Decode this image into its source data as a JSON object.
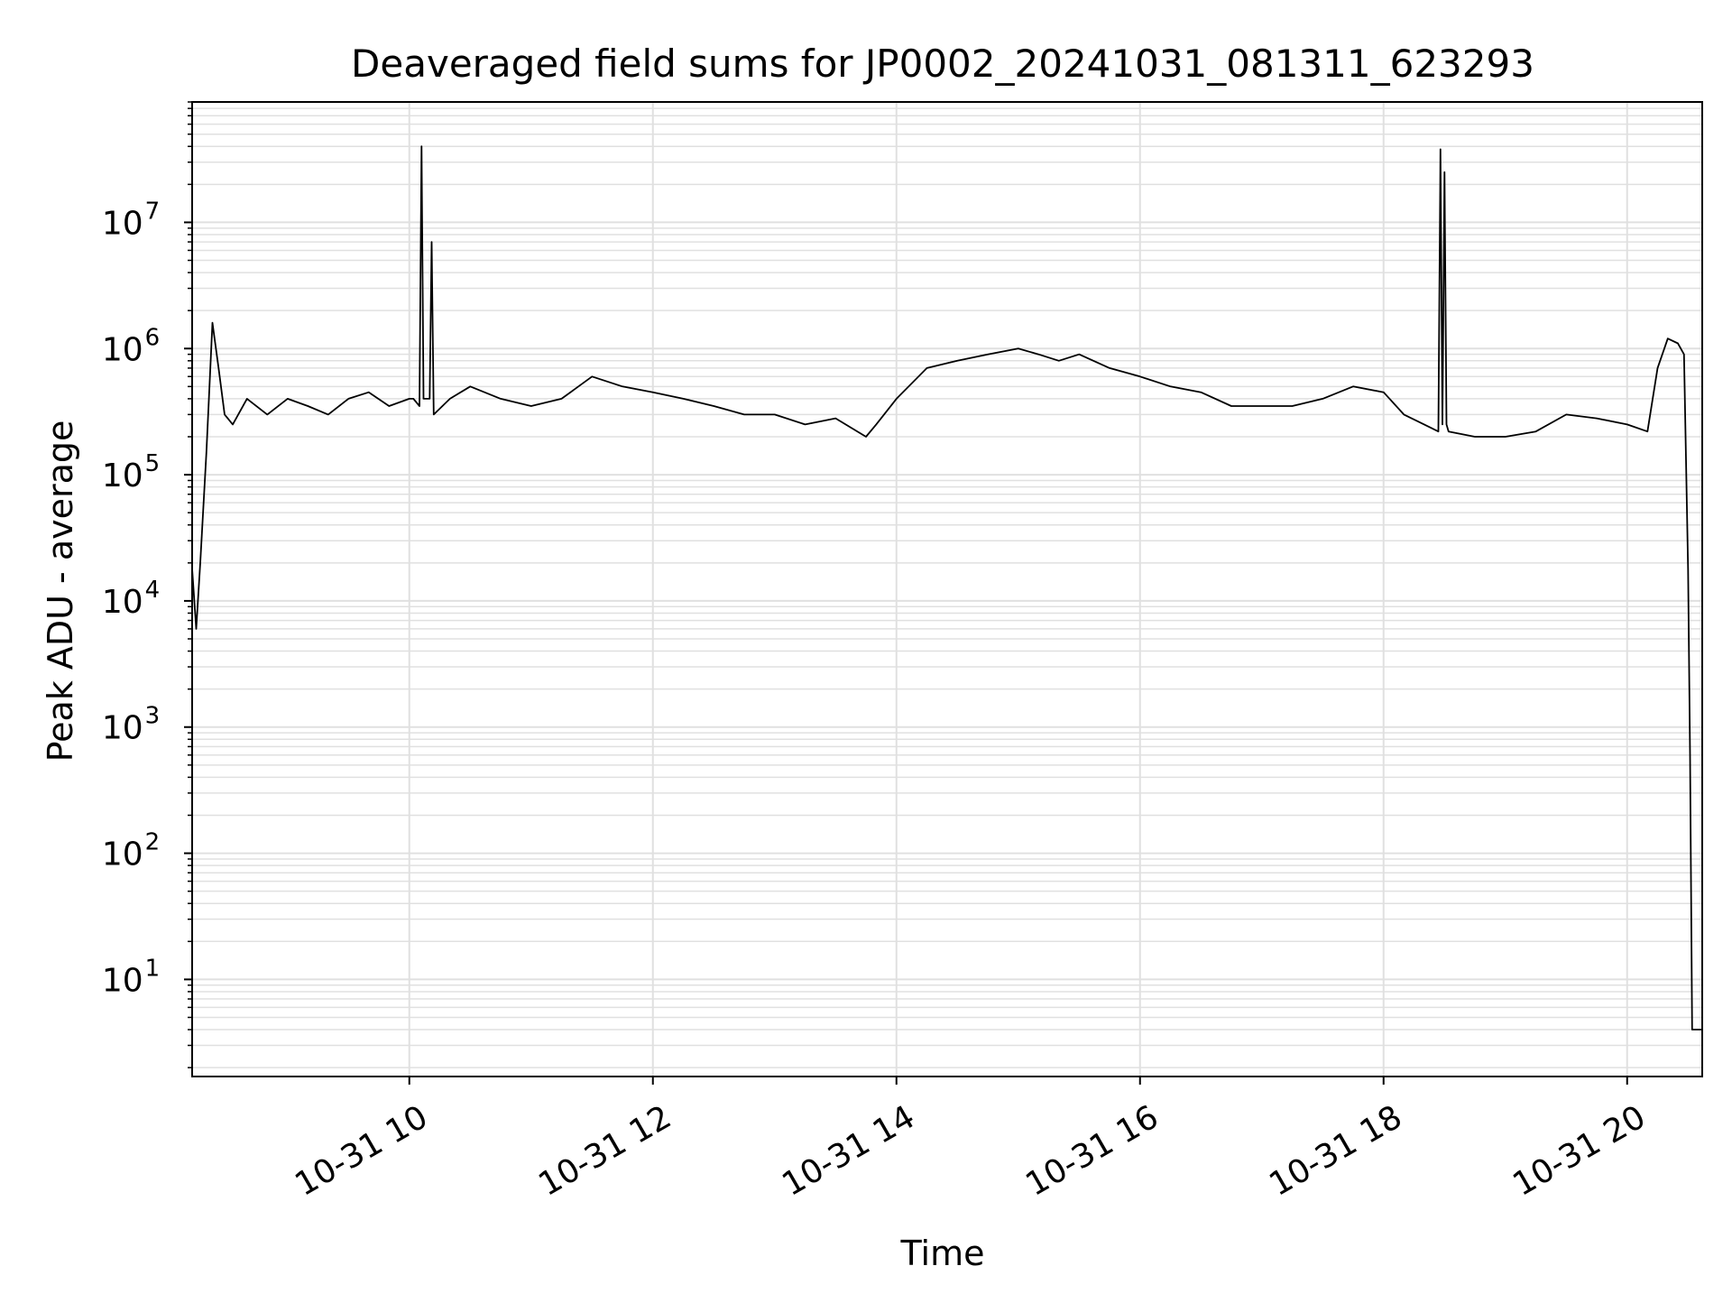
{
  "chart_data": {
    "type": "line",
    "title": "Deaveraged field sums for JP0002_20241031_081311_623293",
    "xlabel": "Time",
    "ylabel": "Peak ADU - average",
    "yscale": "log",
    "grid": true,
    "grid_minor": true,
    "xlim": [
      "2024-10-31 08:13",
      "2024-10-31 20:37"
    ],
    "ylim": [
      1.7,
      90000000
    ],
    "x_ticks": [
      {
        "value": "2024-10-31 10:00",
        "label": "10-31 10"
      },
      {
        "value": "2024-10-31 12:00",
        "label": "10-31 12"
      },
      {
        "value": "2024-10-31 14:00",
        "label": "10-31 14"
      },
      {
        "value": "2024-10-31 16:00",
        "label": "10-31 16"
      },
      {
        "value": "2024-10-31 18:00",
        "label": "10-31 18"
      },
      {
        "value": "2024-10-31 20:00",
        "label": "10-31 20"
      }
    ],
    "y_ticks": [
      {
        "value": 10,
        "base": "10",
        "exp": "1"
      },
      {
        "value": 100,
        "base": "10",
        "exp": "2"
      },
      {
        "value": 1000,
        "base": "10",
        "exp": "3"
      },
      {
        "value": 10000,
        "base": "10",
        "exp": "4"
      },
      {
        "value": 100000,
        "base": "10",
        "exp": "5"
      },
      {
        "value": 1000000,
        "base": "10",
        "exp": "6"
      },
      {
        "value": 10000000,
        "base": "10",
        "exp": "7"
      }
    ],
    "line_color": "#000000",
    "grid_color": "#e0e0e0",
    "series": [
      {
        "x": [
          "2024-10-31 08:13",
          "2024-10-31 08:15",
          "2024-10-31 08:17",
          "2024-10-31 08:20",
          "2024-10-31 08:23",
          "2024-10-31 08:26",
          "2024-10-31 08:29",
          "2024-10-31 08:33",
          "2024-10-31 08:40",
          "2024-10-31 08:50",
          "2024-10-31 09:00",
          "2024-10-31 09:10",
          "2024-10-31 09:20",
          "2024-10-31 09:30",
          "2024-10-31 09:40",
          "2024-10-31 09:50",
          "2024-10-31 10:00",
          "2024-10-31 10:02",
          "2024-10-31 10:05",
          "2024-10-31 10:06",
          "2024-10-31 10:07",
          "2024-10-31 10:10",
          "2024-10-31 10:11",
          "2024-10-31 10:12",
          "2024-10-31 10:20",
          "2024-10-31 10:30",
          "2024-10-31 10:45",
          "2024-10-31 11:00",
          "2024-10-31 11:15",
          "2024-10-31 11:30",
          "2024-10-31 11:45",
          "2024-10-31 12:00",
          "2024-10-31 12:15",
          "2024-10-31 12:30",
          "2024-10-31 12:45",
          "2024-10-31 13:00",
          "2024-10-31 13:15",
          "2024-10-31 13:30",
          "2024-10-31 13:45",
          "2024-10-31 13:50",
          "2024-10-31 14:00",
          "2024-10-31 14:15",
          "2024-10-31 14:30",
          "2024-10-31 14:45",
          "2024-10-31 15:00",
          "2024-10-31 15:10",
          "2024-10-31 15:20",
          "2024-10-31 15:30",
          "2024-10-31 15:45",
          "2024-10-31 16:00",
          "2024-10-31 16:15",
          "2024-10-31 16:30",
          "2024-10-31 16:45",
          "2024-10-31 17:00",
          "2024-10-31 17:15",
          "2024-10-31 17:30",
          "2024-10-31 17:45",
          "2024-10-31 18:00",
          "2024-10-31 18:10",
          "2024-10-31 18:20",
          "2024-10-31 18:27",
          "2024-10-31 18:28",
          "2024-10-31 18:29",
          "2024-10-31 18:30",
          "2024-10-31 18:31",
          "2024-10-31 18:32",
          "2024-10-31 18:45",
          "2024-10-31 19:00",
          "2024-10-31 19:15",
          "2024-10-31 19:30",
          "2024-10-31 19:45",
          "2024-10-31 20:00",
          "2024-10-31 20:10",
          "2024-10-31 20:15",
          "2024-10-31 20:20",
          "2024-10-31 20:25",
          "2024-10-31 20:28",
          "2024-10-31 20:30",
          "2024-10-31 20:31",
          "2024-10-31 20:32",
          "2024-10-31 20:33",
          "2024-10-31 20:35",
          "2024-10-31 20:37"
        ],
        "y": [
          18000,
          6000,
          20000,
          150000,
          1600000,
          700000,
          300000,
          250000,
          400000,
          300000,
          400000,
          350000,
          300000,
          400000,
          450000,
          350000,
          400000,
          400000,
          350000,
          40000000,
          400000,
          400000,
          7000000,
          300000,
          400000,
          500000,
          400000,
          350000,
          400000,
          600000,
          500000,
          450000,
          400000,
          350000,
          300000,
          300000,
          250000,
          280000,
          200000,
          250000,
          400000,
          700000,
          800000,
          900000,
          1000000,
          900000,
          800000,
          900000,
          700000,
          600000,
          500000,
          450000,
          350000,
          350000,
          350000,
          400000,
          500000,
          450000,
          300000,
          250000,
          220000,
          38000000,
          250000,
          25000000,
          250000,
          220000,
          200000,
          200000,
          220000,
          300000,
          280000,
          250000,
          220000,
          700000,
          1200000,
          1100000,
          900000,
          18000,
          600,
          4,
          4,
          4,
          4
        ]
      }
    ]
  }
}
